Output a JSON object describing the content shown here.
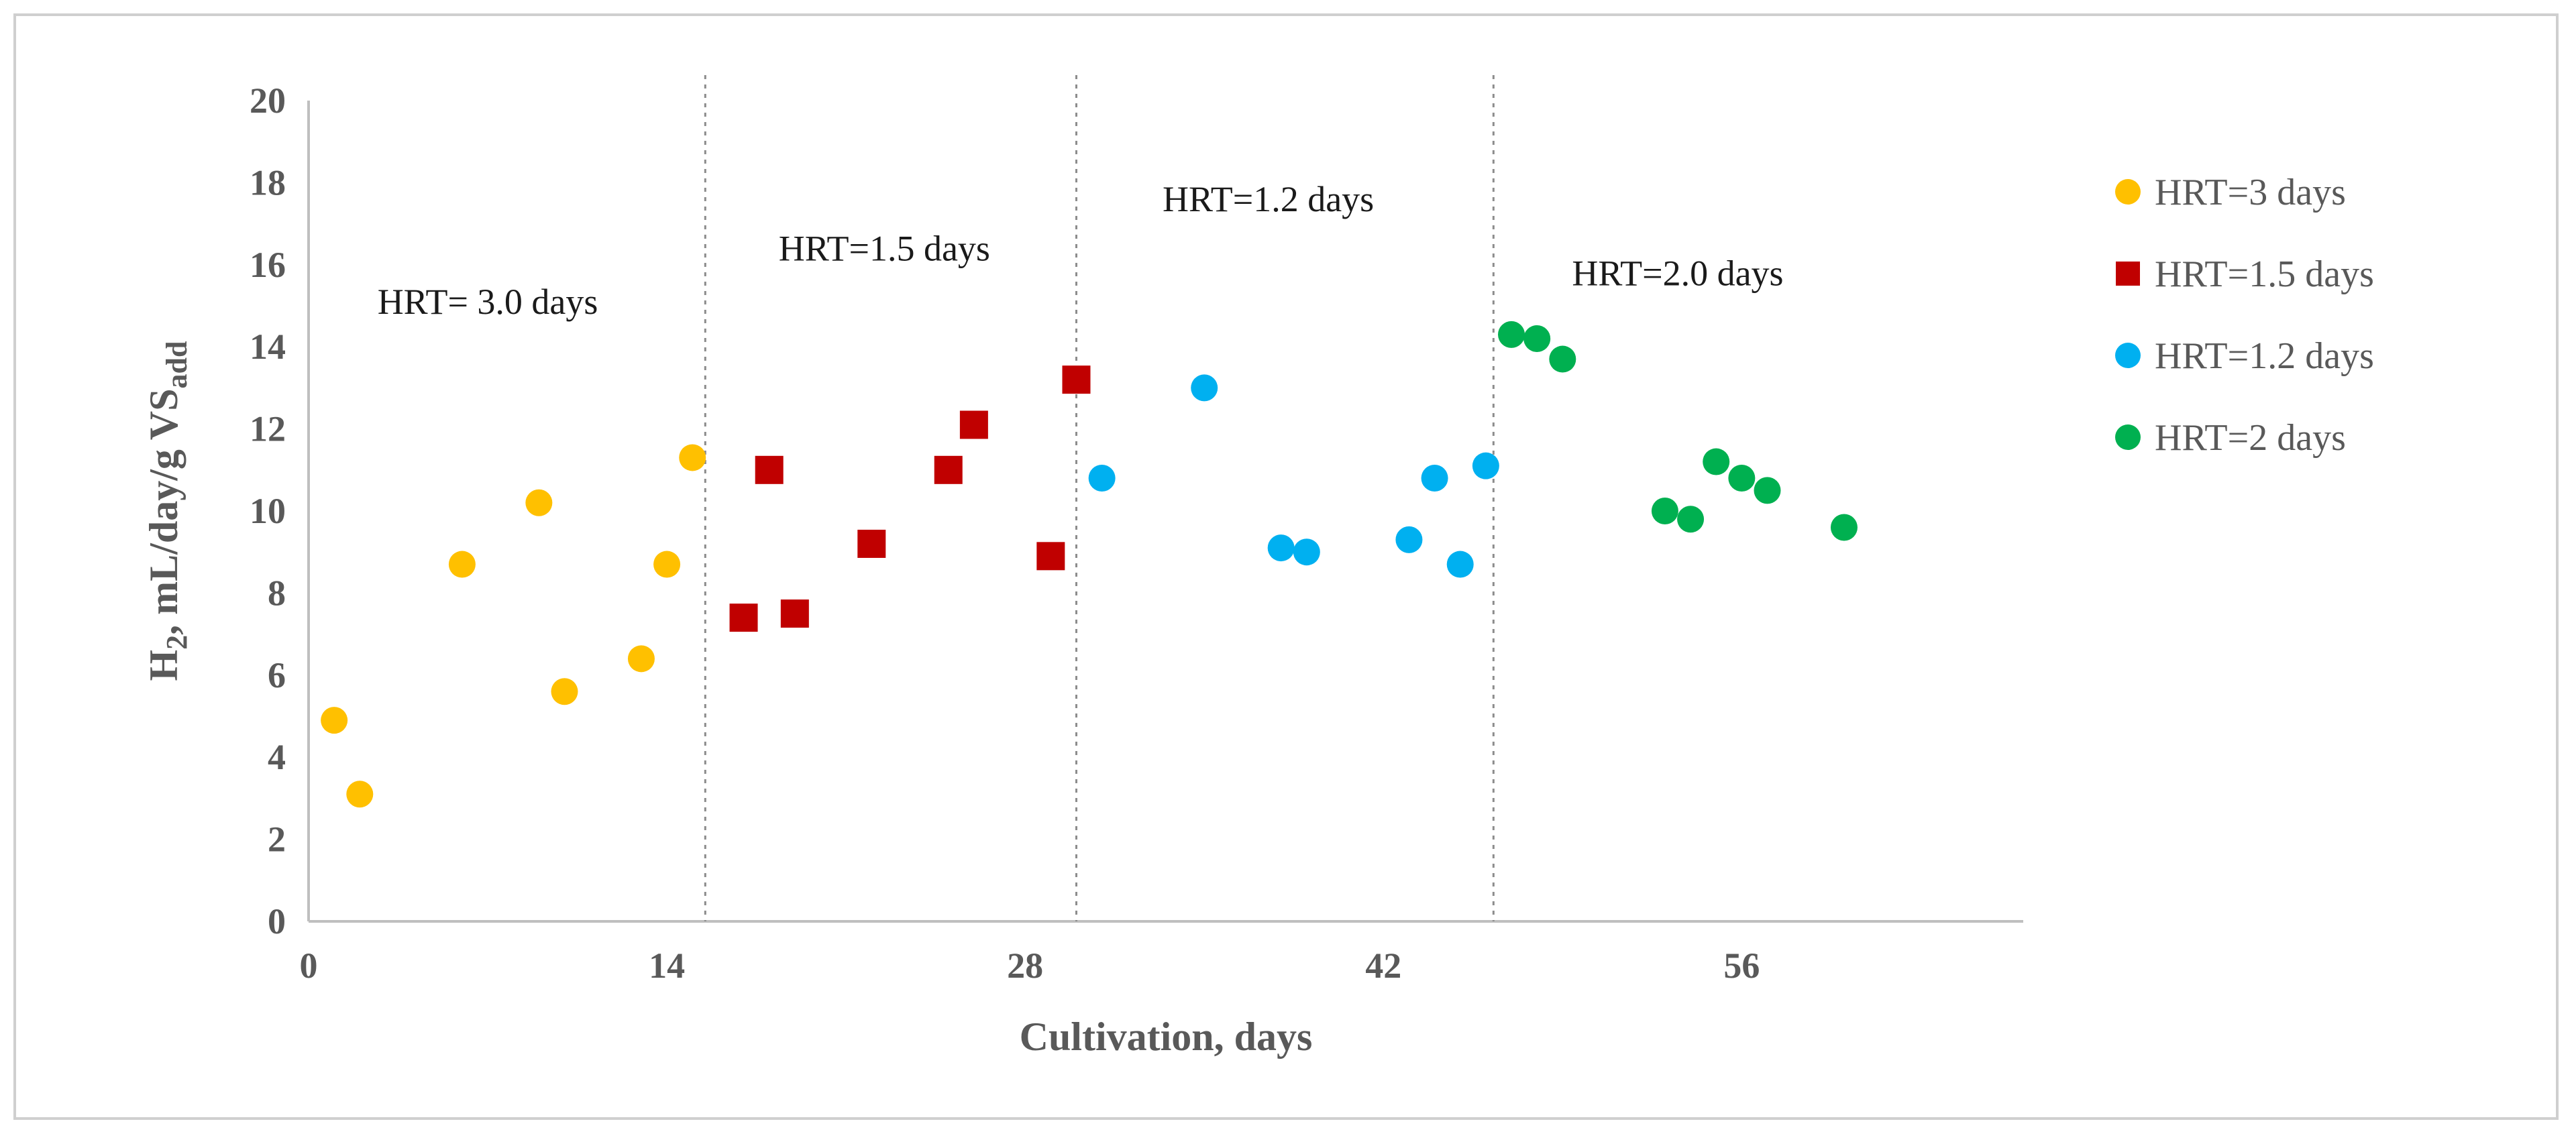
{
  "chart_data": {
    "type": "scatter",
    "title": "",
    "xlabel": "Cultivation, days",
    "ylabel": {
      "main": "H",
      "sub1": "2",
      "mid": ", mL/day/g VS",
      "sub2": "add"
    },
    "xlim": [
      0,
      67
    ],
    "ylim": [
      0,
      20
    ],
    "xticks": [
      0,
      14,
      28,
      42,
      56
    ],
    "yticks": [
      0,
      2,
      4,
      6,
      8,
      10,
      12,
      14,
      16,
      18,
      20
    ],
    "grid": false,
    "legend_position": "right",
    "phase_boundaries": [
      15.5,
      30,
      46.3
    ],
    "phase_labels": [
      {
        "text": "HRT= 3.0 days",
        "x": 7,
        "y": 14.8
      },
      {
        "text": "HRT=1.5 days",
        "x": 22.5,
        "y": 16.1
      },
      {
        "text": "HRT=1.2 days",
        "x": 37.5,
        "y": 17.3
      },
      {
        "text": "HRT=2.0 days",
        "x": 53.5,
        "y": 15.5
      }
    ],
    "series": [
      {
        "name": "HRT=3 days",
        "marker": "circle",
        "color": "#FFC000",
        "points": [
          [
            1,
            4.9
          ],
          [
            2,
            3.1
          ],
          [
            6,
            8.7
          ],
          [
            9,
            10.2
          ],
          [
            10,
            5.6
          ],
          [
            13,
            6.4
          ],
          [
            14,
            8.7
          ],
          [
            15,
            11.3
          ]
        ]
      },
      {
        "name": "HRT=1.5 days",
        "marker": "square",
        "color": "#C00000",
        "points": [
          [
            17,
            7.4
          ],
          [
            18,
            11.0
          ],
          [
            19,
            7.5
          ],
          [
            22,
            9.2
          ],
          [
            25,
            11.0
          ],
          [
            26,
            12.1
          ],
          [
            29,
            8.9
          ],
          [
            30,
            13.2
          ]
        ]
      },
      {
        "name": "HRT=1.2 days",
        "marker": "circle",
        "color": "#00B0F0",
        "points": [
          [
            31,
            10.8
          ],
          [
            35,
            13.0
          ],
          [
            38,
            9.1
          ],
          [
            39,
            9.0
          ],
          [
            43,
            9.3
          ],
          [
            44,
            10.8
          ],
          [
            45,
            8.7
          ],
          [
            46,
            11.1
          ]
        ]
      },
      {
        "name": "HRT=2  days",
        "marker": "circle",
        "color": "#00B050",
        "points": [
          [
            47,
            14.3
          ],
          [
            48,
            14.2
          ],
          [
            49,
            13.7
          ],
          [
            53,
            10.0
          ],
          [
            54,
            9.8
          ],
          [
            55,
            11.2
          ],
          [
            56,
            10.8
          ],
          [
            57,
            10.5
          ],
          [
            60,
            9.6
          ]
        ]
      }
    ]
  }
}
